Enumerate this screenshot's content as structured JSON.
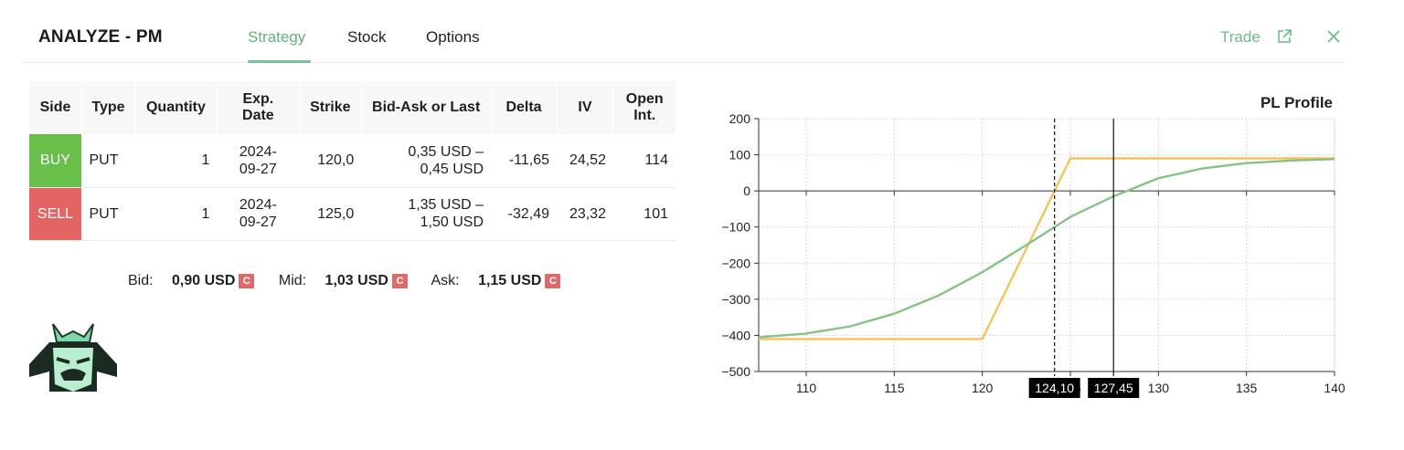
{
  "header": {
    "title": "ANALYZE - PM",
    "tabs": [
      {
        "label": "Strategy",
        "active": true
      },
      {
        "label": "Stock",
        "active": false
      },
      {
        "label": "Options",
        "active": false
      }
    ],
    "trade_label": "Trade",
    "accent_color": "#5fb37a"
  },
  "table": {
    "columns": [
      "Side",
      "Type",
      "Quantity",
      "Exp. Date",
      "Strike",
      "Bid-Ask or Last",
      "Delta",
      "IV",
      "Open Int."
    ],
    "rows": [
      {
        "side": "BUY",
        "type": "PUT",
        "quantity": "1",
        "exp_line1": "2024-",
        "exp_line2": "09-27",
        "strike": "120,0",
        "bidask_line1": "0,35 USD –",
        "bidask_line2": "0,45 USD",
        "delta": "-11,65",
        "iv": "24,52",
        "open_int": "114"
      },
      {
        "side": "SELL",
        "type": "PUT",
        "quantity": "1",
        "exp_line1": "2024-",
        "exp_line2": "09-27",
        "strike": "125,0",
        "bidask_line1": "1,35 USD –",
        "bidask_line2": "1,50 USD",
        "delta": "-32,49",
        "iv": "23,32",
        "open_int": "101"
      }
    ]
  },
  "quote": {
    "bid_label": "Bid:",
    "bid_value": "0,90 USD",
    "mid_label": "Mid:",
    "mid_value": "1,03 USD",
    "ask_label": "Ask:",
    "ask_value": "1,15 USD",
    "badge": "C"
  },
  "chart_data": {
    "type": "line",
    "title": "PL Profile",
    "xlabel": "",
    "ylabel": "",
    "xlim": [
      107.3,
      140
    ],
    "ylim": [
      -500,
      200
    ],
    "xticks": [
      "110",
      "115",
      "120",
      "125",
      "130",
      "135",
      "140"
    ],
    "yticks": [
      "200",
      "100",
      "0",
      "−100",
      "−200",
      "−300",
      "−400",
      "−500"
    ],
    "grid": true,
    "series": [
      {
        "color": "#f3c35e",
        "style": "expiration",
        "x": [
          107.3,
          120,
          125,
          140
        ],
        "y": [
          -410,
          -410,
          90,
          90
        ]
      },
      {
        "color": "#86c286",
        "style": "today",
        "x": [
          107.3,
          110,
          112.5,
          115,
          117.5,
          120,
          122.5,
          124.1,
          125,
          127.45,
          130,
          132.5,
          135,
          137.5,
          140
        ],
        "y": [
          -405,
          -395,
          -375,
          -340,
          -290,
          -225,
          -150,
          -100,
          -72,
          -15,
          35,
          62,
          77,
          84,
          88
        ]
      }
    ],
    "markers": [
      {
        "x": 124.1,
        "label": "124,10",
        "style": "dashed"
      },
      {
        "x": 127.45,
        "label": "127,45",
        "style": "solid"
      }
    ]
  }
}
